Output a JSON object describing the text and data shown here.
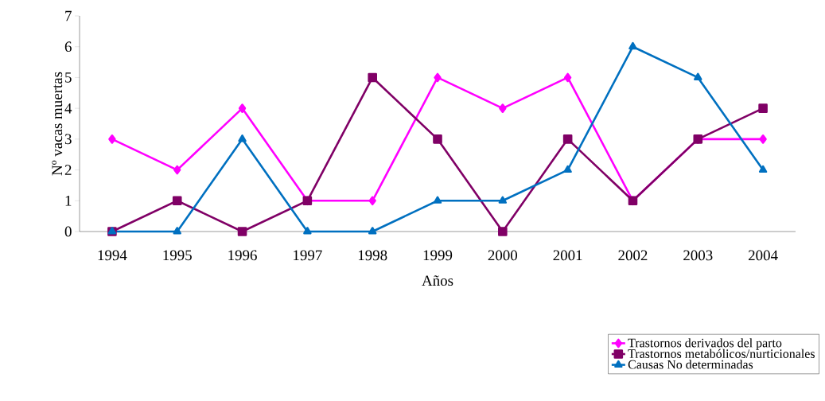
{
  "chart_data": {
    "type": "line",
    "xlabel": "Años",
    "ylabel": "Nº vacas muertas",
    "categories": [
      "1994",
      "1995",
      "1996",
      "1997",
      "1998",
      "1999",
      "2000",
      "2001",
      "2002",
      "2003",
      "2004"
    ],
    "series": [
      {
        "name": "Trastornos derivados del parto",
        "color": "#ff00ff",
        "marker": "diamond",
        "values": [
          3,
          2,
          4,
          1,
          1,
          5,
          4,
          5,
          1,
          3,
          3
        ]
      },
      {
        "name": "Trastornos metabólicos/nurticionales",
        "color": "#800066",
        "marker": "square",
        "values": [
          0,
          1,
          0,
          1,
          5,
          3,
          0,
          3,
          1,
          3,
          4
        ]
      },
      {
        "name": "Causas No determinadas",
        "color": "#0070c0",
        "marker": "triangle",
        "values": [
          0,
          0,
          3,
          0,
          0,
          1,
          1,
          2,
          6,
          5,
          2
        ]
      }
    ],
    "ylim": [
      0,
      7
    ],
    "yticks": [
      0,
      1,
      2,
      3,
      4,
      5,
      6,
      7
    ],
    "grid": false,
    "legend": "bottom right",
    "line_style": "solid"
  }
}
